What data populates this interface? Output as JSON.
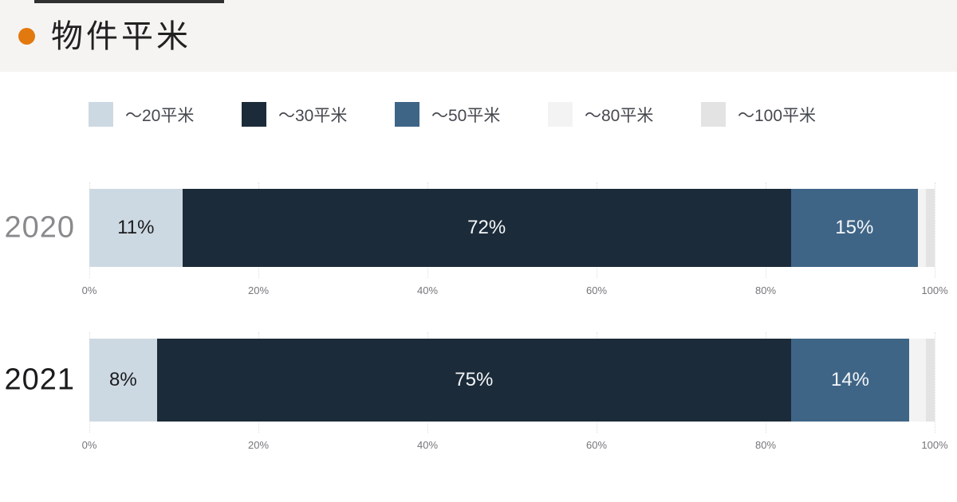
{
  "page": {
    "title": "物件平米",
    "header_bg": "#f5f4f2",
    "accent_color": "#e2790e",
    "top_line_color": "#303030"
  },
  "legend": {
    "items": [
      {
        "label": "～20平米",
        "color": "#cdd9e2"
      },
      {
        "label": "～30平米",
        "color": "#1c2b39"
      },
      {
        "label": "～50平米",
        "color": "#3f6586"
      },
      {
        "label": "～80平米",
        "color": "#f3f3f3"
      },
      {
        "label": "～100平米",
        "color": "#e3e3e3"
      }
    ]
  },
  "chart_data": {
    "type": "bar",
    "orientation": "horizontal",
    "stacked": true,
    "title": "物件平米",
    "unit": "percent",
    "categories": [
      "2020",
      "2021"
    ],
    "category_label_colors": [
      "#8a8a8d",
      "#1b1b1d"
    ],
    "series": [
      {
        "name": "～20平米",
        "color": "#cdd9e2",
        "values": [
          11,
          8
        ]
      },
      {
        "name": "～30平米",
        "color": "#1c2b39",
        "values": [
          72,
          75
        ]
      },
      {
        "name": "～50平米",
        "color": "#3f6586",
        "values": [
          15,
          14
        ]
      },
      {
        "name": "～80平米",
        "color": "#f3f3f3",
        "values": [
          1,
          2
        ]
      },
      {
        "name": "～100平米",
        "color": "#e3e3e3",
        "values": [
          1,
          1
        ]
      }
    ],
    "data_labels": {
      "2020": [
        "11%",
        "72%",
        "15%"
      ],
      "2021": [
        "8%",
        "75%",
        "14%"
      ]
    },
    "x_ticks": [
      "0%",
      "20%",
      "40%",
      "60%",
      "80%",
      "100%"
    ],
    "xlim": [
      0,
      100
    ],
    "grid": "dotted-vertical",
    "legend_position": "top"
  }
}
